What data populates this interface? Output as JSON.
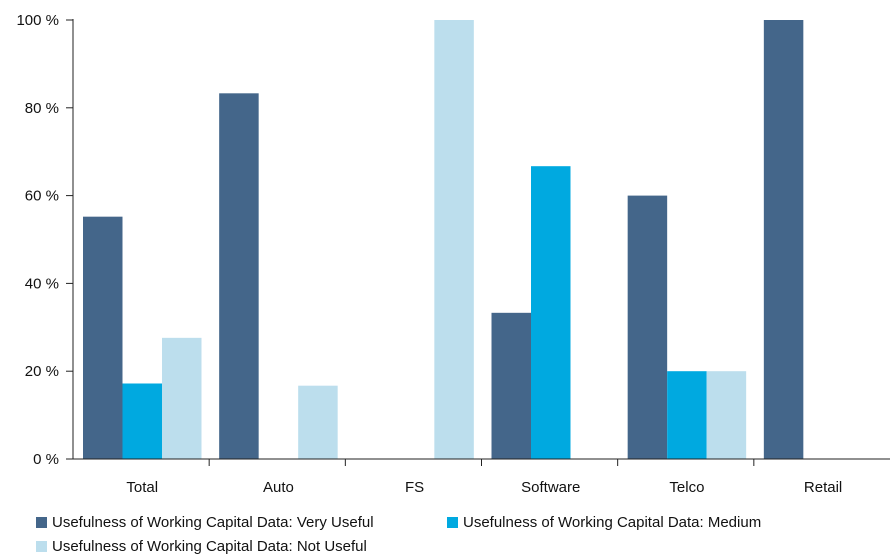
{
  "chart_data": {
    "type": "bar",
    "categories": [
      "Total",
      "Auto",
      "FS",
      "Software",
      "Telco",
      "Retail"
    ],
    "series": [
      {
        "name": "Usefulness of Working Capital Data: Very Useful",
        "color": "#44668a",
        "values": [
          55.2,
          83.3,
          0,
          33.3,
          60,
          100
        ]
      },
      {
        "name": "Usefulness of Working Capital Data: Medium",
        "color": "#00a9e0",
        "values": [
          17.2,
          0,
          0,
          66.7,
          20,
          0
        ]
      },
      {
        "name": "Usefulness of Working Capital Data: Not Useful",
        "color": "#bcdeed",
        "values": [
          27.6,
          16.7,
          100,
          0,
          20,
          0
        ]
      }
    ],
    "y_ticks": [
      "0 %",
      "20 %",
      "40 %",
      "60 %",
      "80 %",
      "100 %"
    ],
    "ylim": [
      0,
      100
    ],
    "title": "",
    "xlabel": "",
    "ylabel": "",
    "grid": false,
    "legend_position": "bottom"
  }
}
